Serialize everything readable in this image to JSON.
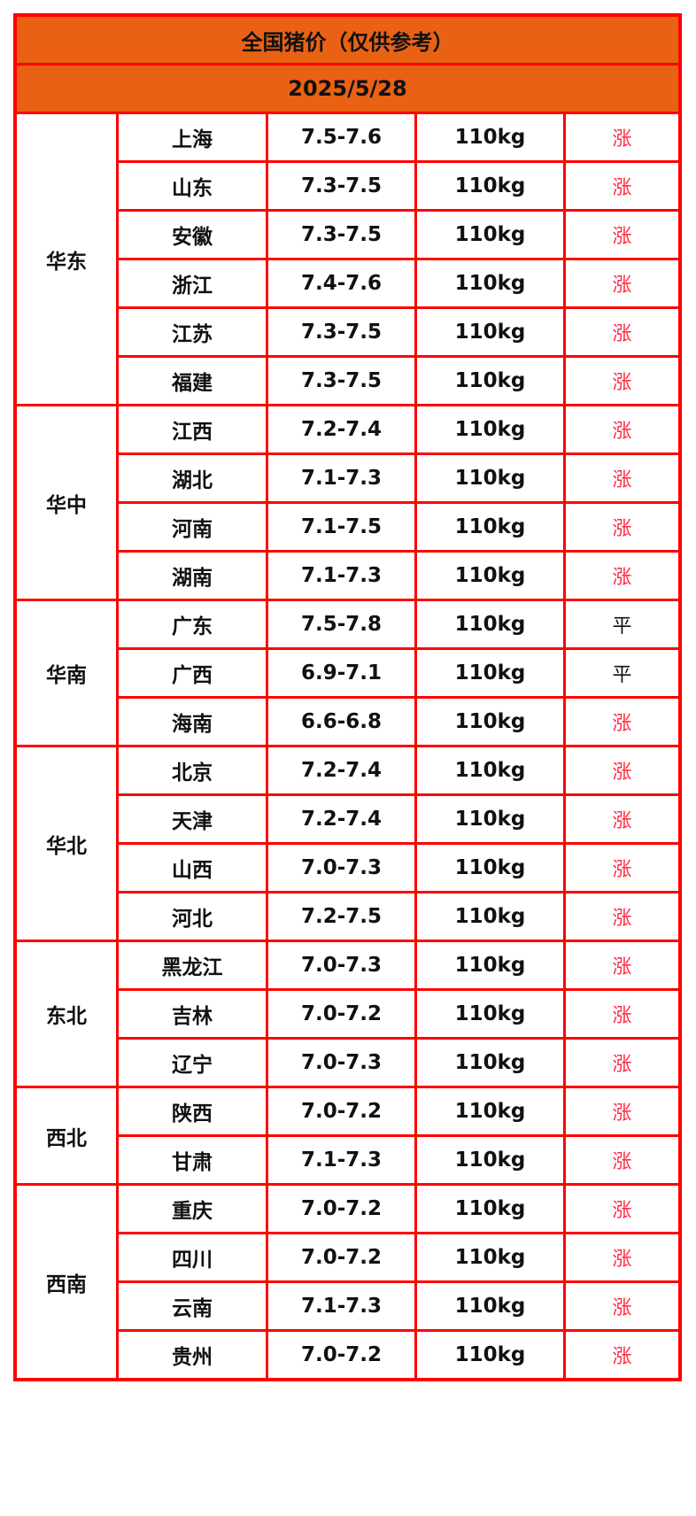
{
  "title": "全国猪价（仅供参考）",
  "date": "2025/5/28",
  "colors": {
    "header_bg": "#e96214",
    "border": "#ff0000",
    "rise": "#ff2a44"
  },
  "regions": [
    {
      "name": "华东",
      "rows": [
        {
          "province": "上海",
          "price": "7.5-7.6",
          "weight": "110kg",
          "trend": "涨"
        },
        {
          "province": "山东",
          "price": "7.3-7.5",
          "weight": "110kg",
          "trend": "涨"
        },
        {
          "province": "安徽",
          "price": "7.3-7.5",
          "weight": "110kg",
          "trend": "涨"
        },
        {
          "province": "浙江",
          "price": "7.4-7.6",
          "weight": "110kg",
          "trend": "涨"
        },
        {
          "province": "江苏",
          "price": "7.3-7.5",
          "weight": "110kg",
          "trend": "涨"
        },
        {
          "province": "福建",
          "price": "7.3-7.5",
          "weight": "110kg",
          "trend": "涨"
        }
      ]
    },
    {
      "name": "华中",
      "rows": [
        {
          "province": "江西",
          "price": "7.2-7.4",
          "weight": "110kg",
          "trend": "涨"
        },
        {
          "province": "湖北",
          "price": "7.1-7.3",
          "weight": "110kg",
          "trend": "涨"
        },
        {
          "province": "河南",
          "price": "7.1-7.5",
          "weight": "110kg",
          "trend": "涨"
        },
        {
          "province": "湖南",
          "price": "7.1-7.3",
          "weight": "110kg",
          "trend": "涨"
        }
      ]
    },
    {
      "name": "华南",
      "rows": [
        {
          "province": "广东",
          "price": "7.5-7.8",
          "weight": "110kg",
          "trend": "平"
        },
        {
          "province": "广西",
          "price": "6.9-7.1",
          "weight": "110kg",
          "trend": "平"
        },
        {
          "province": "海南",
          "price": "6.6-6.8",
          "weight": "110kg",
          "trend": "涨"
        }
      ]
    },
    {
      "name": "华北",
      "rows": [
        {
          "province": "北京",
          "price": "7.2-7.4",
          "weight": "110kg",
          "trend": "涨"
        },
        {
          "province": "天津",
          "price": "7.2-7.4",
          "weight": "110kg",
          "trend": "涨"
        },
        {
          "province": "山西",
          "price": "7.0-7.3",
          "weight": "110kg",
          "trend": "涨"
        },
        {
          "province": "河北",
          "price": "7.2-7.5",
          "weight": "110kg",
          "trend": "涨"
        }
      ]
    },
    {
      "name": "东北",
      "rows": [
        {
          "province": "黑龙江",
          "price": "7.0-7.3",
          "weight": "110kg",
          "trend": "涨"
        },
        {
          "province": "吉林",
          "price": "7.0-7.2",
          "weight": "110kg",
          "trend": "涨"
        },
        {
          "province": "辽宁",
          "price": "7.0-7.3",
          "weight": "110kg",
          "trend": "涨"
        }
      ]
    },
    {
      "name": "西北",
      "rows": [
        {
          "province": "陕西",
          "price": "7.0-7.2",
          "weight": "110kg",
          "trend": "涨"
        },
        {
          "province": "甘肃",
          "price": "7.1-7.3",
          "weight": "110kg",
          "trend": "涨"
        }
      ]
    },
    {
      "name": "西南",
      "rows": [
        {
          "province": "重庆",
          "price": "7.0-7.2",
          "weight": "110kg",
          "trend": "涨"
        },
        {
          "province": "四川",
          "price": "7.0-7.2",
          "weight": "110kg",
          "trend": "涨"
        },
        {
          "province": "云南",
          "price": "7.1-7.3",
          "weight": "110kg",
          "trend": "涨"
        },
        {
          "province": "贵州",
          "price": "7.0-7.2",
          "weight": "110kg",
          "trend": "涨"
        }
      ]
    }
  ]
}
